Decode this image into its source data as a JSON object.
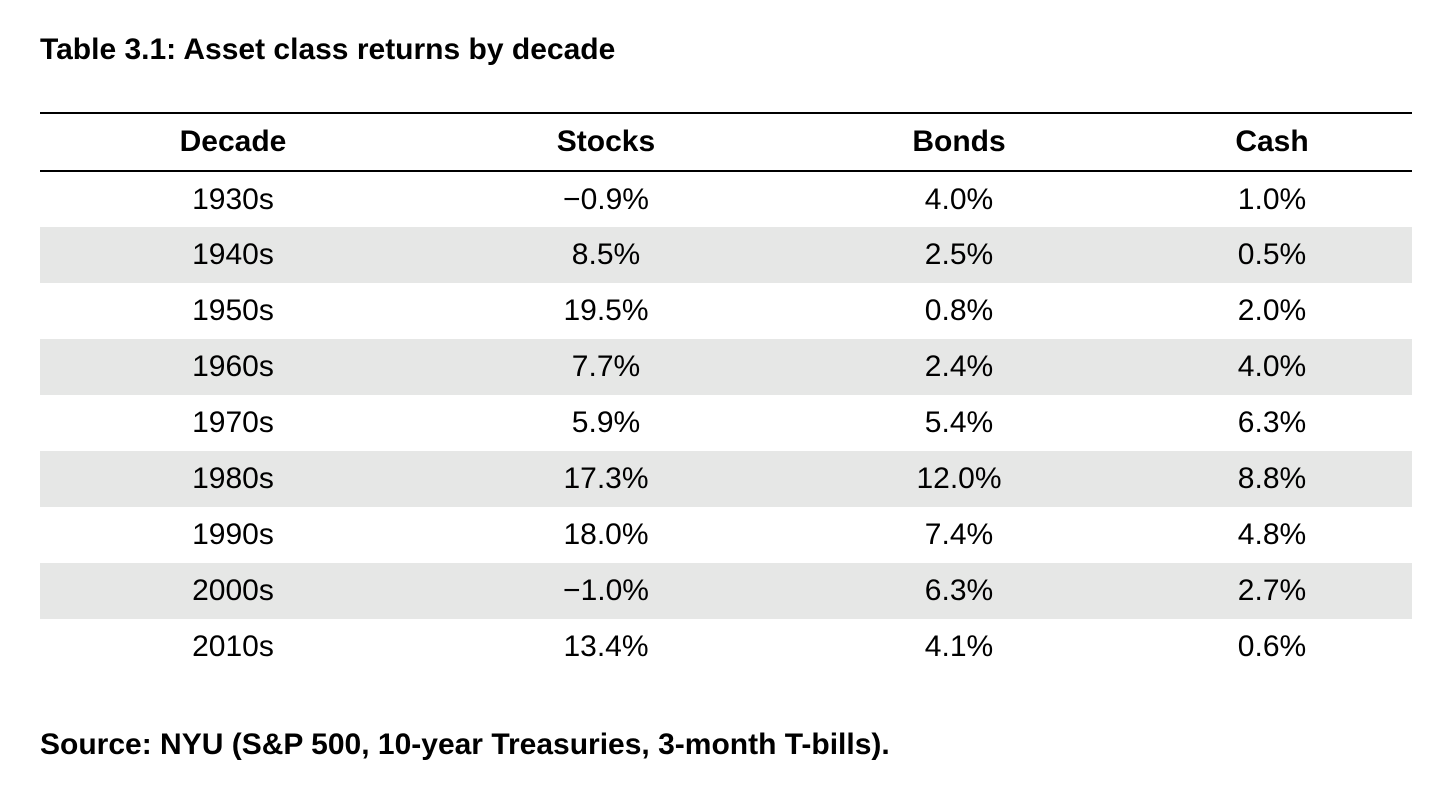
{
  "caption": "Table 3.1: Asset class returns by decade",
  "table": {
    "headers": [
      "Decade",
      "Stocks",
      "Bonds",
      "Cash"
    ],
    "rows": [
      [
        "1930s",
        "−0.9%",
        "4.0%",
        "1.0%"
      ],
      [
        "1940s",
        "8.5%",
        "2.5%",
        "0.5%"
      ],
      [
        "1950s",
        "19.5%",
        "0.8%",
        "2.0%"
      ],
      [
        "1960s",
        "7.7%",
        "2.4%",
        "4.0%"
      ],
      [
        "1970s",
        "5.9%",
        "5.4%",
        "6.3%"
      ],
      [
        "1980s",
        "17.3%",
        "12.0%",
        "8.8%"
      ],
      [
        "1990s",
        "18.0%",
        "7.4%",
        "4.8%"
      ],
      [
        "2000s",
        "−1.0%",
        "6.3%",
        "2.7%"
      ],
      [
        "2010s",
        "13.4%",
        "4.1%",
        "0.6%"
      ]
    ],
    "stripe_color": "#e6e7e6",
    "rule_color": "#000000"
  },
  "source_note": "Source: NYU (S&P 500, 10-year Treasuries, 3-month T-bills)."
}
